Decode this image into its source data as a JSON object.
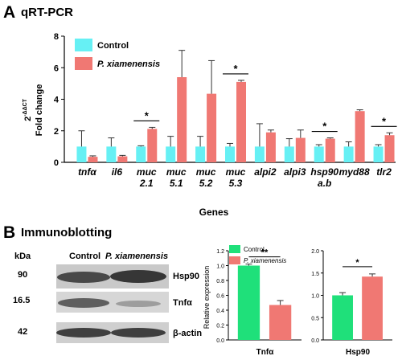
{
  "panelA": {
    "letter": "A",
    "title": "qRT-PCR",
    "y_label_line1": "2",
    "y_label_sup": "-ΔΔCT",
    "y_label_line2": "Fold change",
    "x_label": "Genes"
  },
  "panelB": {
    "letter": "B",
    "title": "Immunoblotting",
    "blot_header_kda": "kDa",
    "blot_header_control": "Control",
    "blot_header_treatment": "P. xiamenensis",
    "blot_rows": [
      {
        "kda": "90",
        "protein": "Hsp90"
      },
      {
        "kda": "16.5",
        "protein": "Tnfα"
      },
      {
        "kda": "42",
        "protein": "β-actin"
      }
    ]
  },
  "chart_data": [
    {
      "type": "bar",
      "ylim": [
        0,
        8
      ],
      "yticks": [
        0,
        2,
        4,
        6,
        8
      ],
      "categories": [
        [
          "tnfα"
        ],
        [
          "il6"
        ],
        [
          "muc",
          "2.1"
        ],
        [
          "muc",
          "5.1"
        ],
        [
          "muc",
          "5.2"
        ],
        [
          "muc",
          "5.3"
        ],
        [
          "alpi2"
        ],
        [
          "alpi3"
        ],
        [
          "hsp90",
          "a.b"
        ],
        [
          "myd88"
        ],
        [
          "tlr2"
        ]
      ],
      "series": [
        {
          "name": "Control",
          "color": "#66f0f4",
          "values": [
            1,
            1,
            1,
            1,
            1,
            1,
            1,
            1,
            1,
            1,
            1
          ],
          "errors": [
            1.0,
            0.55,
            0.05,
            0.65,
            0.65,
            0.2,
            1.45,
            0.5,
            0.12,
            0.3,
            0.12
          ]
        },
        {
          "name": "P. xiamenensis",
          "color": "#f07873",
          "values": [
            0.35,
            0.38,
            2.12,
            5.4,
            4.35,
            5.1,
            1.9,
            1.55,
            1.5,
            3.25,
            1.72
          ],
          "errors": [
            0.06,
            0.06,
            0.1,
            1.7,
            2.1,
            0.1,
            0.15,
            0.5,
            0.05,
            0.08,
            0.15
          ]
        }
      ],
      "significance": [
        {
          "category": 2,
          "label": "*"
        },
        {
          "category": 5,
          "label": "*"
        },
        {
          "category": 8,
          "label": "*"
        },
        {
          "category": 10,
          "label": "*"
        }
      ],
      "legend_position": "top-left"
    },
    {
      "type": "bar",
      "ylabel": "Relative expression",
      "ylim": [
        0,
        1.2
      ],
      "yticks": [
        0.0,
        0.2,
        0.4,
        0.6,
        0.8,
        1.0,
        1.2
      ],
      "categories": [
        "Tnfα"
      ],
      "series": [
        {
          "name": "Control",
          "color": "#1fe07a",
          "values": [
            1.0
          ],
          "errors": [
            0.02
          ]
        },
        {
          "name": "P. xiamenensis",
          "color": "#f07873",
          "values": [
            0.47
          ],
          "errors": [
            0.06
          ]
        }
      ],
      "significance": [
        {
          "category": 0,
          "label": "**"
        }
      ],
      "legend_position": "top"
    },
    {
      "type": "bar",
      "ylim": [
        0,
        2.0
      ],
      "yticks": [
        0.0,
        0.5,
        1.0,
        1.5,
        2.0
      ],
      "categories": [
        "Hsp90"
      ],
      "series": [
        {
          "name": "Control",
          "color": "#1fe07a",
          "values": [
            1.0
          ],
          "errors": [
            0.06
          ]
        },
        {
          "name": "P. xiamenensis",
          "color": "#f07873",
          "values": [
            1.42
          ],
          "errors": [
            0.06
          ]
        }
      ],
      "significance": [
        {
          "category": 0,
          "label": "*"
        }
      ]
    }
  ]
}
